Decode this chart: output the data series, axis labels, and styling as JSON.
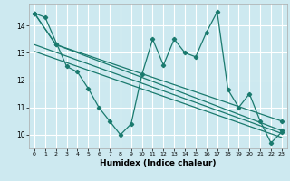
{
  "xlabel": "Humidex (Indice chaleur)",
  "bg_color": "#cde9f0",
  "grid_color": "#ffffff",
  "line_color": "#1a7a6e",
  "xlim": [
    -0.5,
    23.5
  ],
  "ylim": [
    9.5,
    14.8
  ],
  "xticks": [
    0,
    1,
    2,
    3,
    4,
    5,
    6,
    7,
    8,
    9,
    10,
    11,
    12,
    13,
    14,
    15,
    16,
    17,
    18,
    19,
    20,
    21,
    22,
    23
  ],
  "yticks": [
    10,
    11,
    12,
    13,
    14
  ],
  "series1_x": [
    0,
    1,
    3,
    4,
    5,
    6,
    7,
    8,
    9,
    10,
    11,
    12,
    13,
    14,
    15,
    16,
    17,
    18,
    19,
    20,
    21,
    22,
    23
  ],
  "series1_y": [
    14.45,
    14.3,
    12.5,
    12.3,
    11.7,
    11.0,
    10.5,
    10.0,
    10.4,
    12.2,
    13.5,
    12.55,
    13.5,
    13.0,
    12.85,
    13.75,
    14.5,
    11.65,
    11.0,
    11.5,
    10.5,
    9.7,
    10.1
  ],
  "line2_x": [
    0,
    2,
    23
  ],
  "line2_y": [
    14.45,
    13.3,
    10.15
  ],
  "line3_x": [
    0,
    2,
    23
  ],
  "line3_y": [
    14.45,
    13.3,
    10.5
  ],
  "trend1_x": [
    0,
    23
  ],
  "trend1_y": [
    13.3,
    10.05
  ],
  "trend2_x": [
    0,
    23
  ],
  "trend2_y": [
    13.05,
    9.9
  ]
}
